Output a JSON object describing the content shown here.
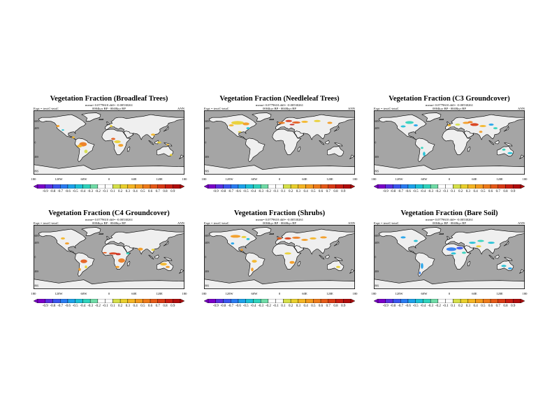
{
  "panels": [
    {
      "title": "Vegetation Fraction (Broadleaf Trees)",
      "stats": "mean= 0.0779610 diff= -0.00530261",
      "expt": "Expt = tewtC-tetaC",
      "time": "0004kyr BP - 0040kyr BP",
      "season": "ANN"
    },
    {
      "title": "Vegetation Fraction (Needleleaf Trees)",
      "stats": "mean= 0.0779610 diff= -0.00530261",
      "expt": "Expt = tewtC-tetaC",
      "time": "0004kyr BP - 0040kyr BP",
      "season": "ANN"
    },
    {
      "title": "Vegetation Fraction (C3 Groundcover)",
      "stats": "mean= 0.0779610 diff= -0.00530261",
      "expt": "Expt = tewtC-tetaC",
      "time": "0004kyr BP - 0040kyr BP",
      "season": "ANN"
    },
    {
      "title": "Vegetation Fraction (C4 Groundcover)",
      "stats": "mean= 0.0779610 diff= -0.00530261",
      "expt": "Expt = tewtC-tetaC",
      "time": "0004kyr BP - 0040kyr BP",
      "season": "ANN"
    },
    {
      "title": "Vegetation Fraction (Shrubs)",
      "stats": "mean= 0.0779610 diff= -0.00530261",
      "expt": "Expt = tewtC-tetaC",
      "time": "0004kyr BP - 0040kyr BP",
      "season": "ANN"
    },
    {
      "title": "Vegetation Fraction (Bare Soil)",
      "stats": "mean= 0.0779610 diff= -0.00530261",
      "expt": "Expt = tewtC-tetaC",
      "time": "0004kyr BP - 0040kyr BP",
      "season": "ANN"
    }
  ],
  "lon_ticks": [
    "180",
    "120W",
    "60W",
    "0",
    "60E",
    "120E",
    "180"
  ],
  "lat_ticks": [
    "60N",
    "40N",
    "0",
    "40S",
    "80S"
  ],
  "colorbar_labels": [
    "-0.9",
    "-0.8",
    "-0.7",
    "-0.6",
    "-0.5",
    "-0.4",
    "-0.3",
    "-0.2",
    "-0.1",
    "0.1",
    "0.2",
    "0.3",
    "0.4",
    "0.5",
    "0.6",
    "0.7",
    "0.8",
    "0.9"
  ],
  "colors": {
    "ocean": "#a5a5a5",
    "land": "#efefef",
    "colorbar": [
      "#7a00c8",
      "#5a2fe0",
      "#3a55ee",
      "#2a7cf2",
      "#1ea2ea",
      "#1cc0d6",
      "#2fd3bc",
      "#70dca7",
      "#ffffff",
      "#ffffff",
      "#d6e04a",
      "#e9cf2e",
      "#f4b524",
      "#f39a1e",
      "#ee7a1a",
      "#e55a18",
      "#d83a15",
      "#c81e12",
      "#b00d0d"
    ]
  }
}
